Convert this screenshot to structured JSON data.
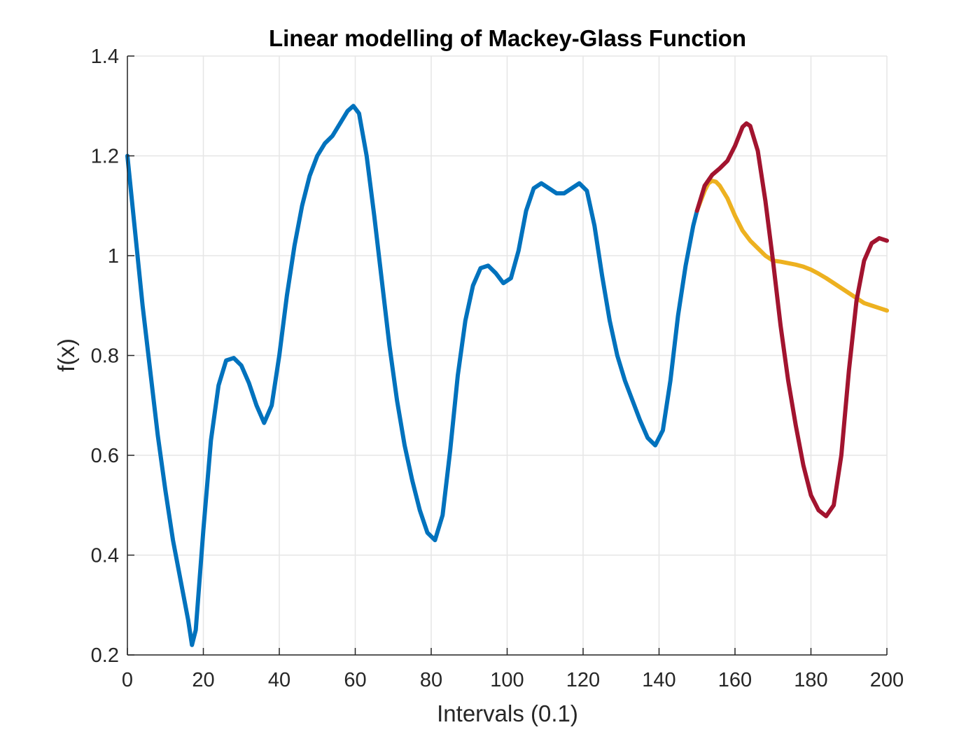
{
  "chart_data": {
    "type": "line",
    "title": "Linear modelling of Mackey-Glass Function",
    "xlabel": "Intervals (0.1)",
    "ylabel": "f(x)",
    "xlim": [
      0,
      200
    ],
    "ylim": [
      0.2,
      1.4
    ],
    "xticks": [
      0,
      20,
      40,
      60,
      80,
      100,
      120,
      140,
      160,
      180,
      200
    ],
    "yticks": [
      0.2,
      0.4,
      0.6,
      0.8,
      1,
      1.2,
      1.4
    ],
    "xtick_labels": [
      "0",
      "20",
      "40",
      "60",
      "80",
      "100",
      "120",
      "140",
      "160",
      "180",
      "200"
    ],
    "ytick_labels": [
      "0.2",
      "0.4",
      "0.6",
      "0.8",
      "1",
      "1.2",
      "1.4"
    ],
    "grid": true,
    "series": [
      {
        "color": "#0072BD",
        "points": [
          [
            0,
            1.2
          ],
          [
            2,
            1.05
          ],
          [
            4,
            0.9
          ],
          [
            6,
            0.77
          ],
          [
            8,
            0.64
          ],
          [
            10,
            0.53
          ],
          [
            12,
            0.43
          ],
          [
            14,
            0.35
          ],
          [
            16,
            0.27
          ],
          [
            17,
            0.22
          ],
          [
            18,
            0.25
          ],
          [
            20,
            0.45
          ],
          [
            22,
            0.63
          ],
          [
            24,
            0.74
          ],
          [
            26,
            0.79
          ],
          [
            28,
            0.795
          ],
          [
            30,
            0.78
          ],
          [
            32,
            0.745
          ],
          [
            34,
            0.7
          ],
          [
            36,
            0.665
          ],
          [
            38,
            0.7
          ],
          [
            40,
            0.8
          ],
          [
            42,
            0.92
          ],
          [
            44,
            1.02
          ],
          [
            46,
            1.1
          ],
          [
            48,
            1.16
          ],
          [
            50,
            1.2
          ],
          [
            52,
            1.225
          ],
          [
            54,
            1.24
          ],
          [
            56,
            1.265
          ],
          [
            58,
            1.29
          ],
          [
            59.5,
            1.3
          ],
          [
            61,
            1.285
          ],
          [
            63,
            1.2
          ],
          [
            65,
            1.08
          ],
          [
            67,
            0.95
          ],
          [
            69,
            0.82
          ],
          [
            71,
            0.71
          ],
          [
            73,
            0.62
          ],
          [
            75,
            0.55
          ],
          [
            77,
            0.49
          ],
          [
            79,
            0.445
          ],
          [
            81,
            0.43
          ],
          [
            83,
            0.48
          ],
          [
            85,
            0.61
          ],
          [
            87,
            0.76
          ],
          [
            89,
            0.87
          ],
          [
            91,
            0.94
          ],
          [
            93,
            0.975
          ],
          [
            95,
            0.98
          ],
          [
            97,
            0.965
          ],
          [
            99,
            0.945
          ],
          [
            101,
            0.955
          ],
          [
            103,
            1.01
          ],
          [
            105,
            1.09
          ],
          [
            107,
            1.135
          ],
          [
            109,
            1.145
          ],
          [
            111,
            1.135
          ],
          [
            113,
            1.125
          ],
          [
            115,
            1.125
          ],
          [
            117,
            1.135
          ],
          [
            119,
            1.145
          ],
          [
            121,
            1.13
          ],
          [
            123,
            1.06
          ],
          [
            125,
            0.96
          ],
          [
            127,
            0.87
          ],
          [
            129,
            0.8
          ],
          [
            131,
            0.75
          ],
          [
            133,
            0.71
          ],
          [
            135,
            0.67
          ],
          [
            137,
            0.635
          ],
          [
            139,
            0.62
          ],
          [
            141,
            0.65
          ],
          [
            143,
            0.75
          ],
          [
            145,
            0.88
          ],
          [
            147,
            0.98
          ],
          [
            149,
            1.06
          ],
          [
            150,
            1.09
          ]
        ]
      },
      {
        "color": "#EDB120",
        "points": [
          [
            150,
            1.09
          ],
          [
            151,
            1.11
          ],
          [
            152,
            1.13
          ],
          [
            153,
            1.145
          ],
          [
            154,
            1.15
          ],
          [
            155,
            1.148
          ],
          [
            156,
            1.14
          ],
          [
            158,
            1.115
          ],
          [
            160,
            1.08
          ],
          [
            162,
            1.05
          ],
          [
            164,
            1.03
          ],
          [
            166,
            1.015
          ],
          [
            168,
            1.0
          ],
          [
            170,
            0.99
          ],
          [
            172,
            0.988
          ],
          [
            174,
            0.985
          ],
          [
            176,
            0.982
          ],
          [
            178,
            0.978
          ],
          [
            180,
            0.972
          ],
          [
            182,
            0.964
          ],
          [
            184,
            0.955
          ],
          [
            186,
            0.945
          ],
          [
            188,
            0.935
          ],
          [
            190,
            0.925
          ],
          [
            192,
            0.915
          ],
          [
            194,
            0.905
          ],
          [
            196,
            0.9
          ],
          [
            198,
            0.895
          ],
          [
            200,
            0.89
          ]
        ]
      },
      {
        "color": "#A2142F",
        "points": [
          [
            150,
            1.09
          ],
          [
            152,
            1.14
          ],
          [
            154,
            1.162
          ],
          [
            156,
            1.175
          ],
          [
            158,
            1.19
          ],
          [
            160,
            1.22
          ],
          [
            162,
            1.258
          ],
          [
            163,
            1.265
          ],
          [
            164,
            1.26
          ],
          [
            166,
            1.21
          ],
          [
            168,
            1.11
          ],
          [
            170,
            0.99
          ],
          [
            172,
            0.86
          ],
          [
            174,
            0.75
          ],
          [
            176,
            0.66
          ],
          [
            178,
            0.58
          ],
          [
            180,
            0.52
          ],
          [
            182,
            0.49
          ],
          [
            184,
            0.478
          ],
          [
            186,
            0.5
          ],
          [
            188,
            0.6
          ],
          [
            190,
            0.77
          ],
          [
            192,
            0.91
          ],
          [
            194,
            0.99
          ],
          [
            196,
            1.025
          ],
          [
            198,
            1.035
          ],
          [
            200,
            1.03
          ]
        ]
      }
    ]
  }
}
